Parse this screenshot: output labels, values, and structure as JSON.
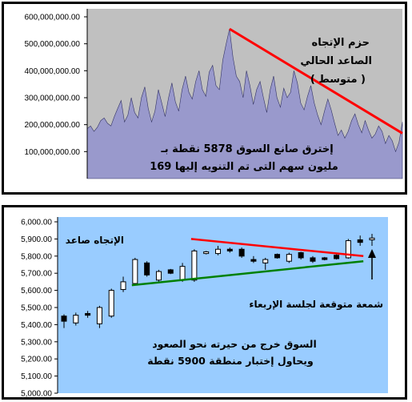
{
  "chart_data": [
    {
      "type": "area",
      "title": "",
      "xlabel": "",
      "ylabel": "",
      "ylim": [
        0,
        600000000
      ],
      "yticks": [
        "600,000,000.00",
        "500,000,000.00",
        "400,000,000.00",
        "300,000,000.00",
        "200,000,000.00",
        "100,000,000.00"
      ],
      "background_color": "#c0c0c0",
      "area_color": "#9999cc",
      "trendline_color": "#ff0000",
      "grid": false,
      "values": [
        185000000,
        195000000,
        175000000,
        190000000,
        215000000,
        225000000,
        205000000,
        195000000,
        230000000,
        260000000,
        290000000,
        210000000,
        235000000,
        300000000,
        245000000,
        225000000,
        300000000,
        340000000,
        260000000,
        210000000,
        250000000,
        330000000,
        280000000,
        230000000,
        300000000,
        355000000,
        285000000,
        250000000,
        330000000,
        380000000,
        320000000,
        295000000,
        360000000,
        400000000,
        330000000,
        305000000,
        395000000,
        420000000,
        345000000,
        330000000,
        440000000,
        500000000,
        555000000,
        450000000,
        380000000,
        360000000,
        300000000,
        400000000,
        345000000,
        275000000,
        330000000,
        360000000,
        300000000,
        245000000,
        330000000,
        380000000,
        300000000,
        265000000,
        335000000,
        300000000,
        320000000,
        400000000,
        355000000,
        280000000,
        255000000,
        305000000,
        345000000,
        280000000,
        235000000,
        200000000,
        250000000,
        295000000,
        255000000,
        205000000,
        160000000,
        180000000,
        150000000,
        175000000,
        215000000,
        240000000,
        200000000,
        170000000,
        215000000,
        180000000,
        150000000,
        165000000,
        195000000,
        175000000,
        130000000,
        160000000,
        140000000,
        100000000,
        135000000,
        210000000
      ],
      "trendline": {
        "from_index": 42,
        "to_index": 93,
        "from_value": 555000000,
        "to_value": 168000000
      },
      "annotations": {
        "top_right": [
          "حزم الإتجاه",
          "الصاعد الحالي",
          "( متوسط )"
        ],
        "bottom": [
          "إخترق صانع السوق 5878 نقطة بـ",
          "169 مليون سهم التى تم التنويه إليها"
        ]
      }
    },
    {
      "type": "candlestick",
      "title": "",
      "xlabel": "",
      "ylabel": "",
      "ylim": [
        5000,
        6000
      ],
      "yticks": [
        "6,000.00",
        "5,900.00",
        "5,800.00",
        "5,700.00",
        "5,600.00",
        "5,500.00",
        "5,400.00",
        "5,300.00",
        "5,200.00",
        "5,100.00",
        "5,000.00"
      ],
      "background_color": "#99ccff",
      "grid": false,
      "candles": [
        {
          "open": 5420,
          "close": 5450,
          "high": 5460,
          "low": 5380,
          "bull": false
        },
        {
          "open": 5410,
          "close": 5455,
          "high": 5470,
          "low": 5395,
          "bull": true
        },
        {
          "open": 5455,
          "close": 5465,
          "high": 5480,
          "low": 5440,
          "bull": false
        },
        {
          "open": 5405,
          "close": 5500,
          "high": 5510,
          "low": 5380,
          "bull": true
        },
        {
          "open": 5450,
          "close": 5600,
          "high": 5610,
          "low": 5440,
          "bull": true
        },
        {
          "open": 5605,
          "close": 5650,
          "high": 5680,
          "low": 5590,
          "bull": true
        },
        {
          "open": 5640,
          "close": 5780,
          "high": 5790,
          "low": 5630,
          "bull": true
        },
        {
          "open": 5690,
          "close": 5760,
          "high": 5770,
          "low": 5680,
          "bull": false
        },
        {
          "open": 5660,
          "close": 5710,
          "high": 5720,
          "low": 5650,
          "bull": true
        },
        {
          "open": 5700,
          "close": 5720,
          "high": 5725,
          "low": 5695,
          "bull": false
        },
        {
          "open": 5660,
          "close": 5740,
          "high": 5760,
          "low": 5650,
          "bull": true
        },
        {
          "open": 5660,
          "close": 5830,
          "high": 5840,
          "low": 5650,
          "bull": true
        },
        {
          "open": 5815,
          "close": 5825,
          "high": 5830,
          "low": 5810,
          "bull": true
        },
        {
          "open": 5815,
          "close": 5840,
          "high": 5860,
          "low": 5805,
          "bull": true
        },
        {
          "open": 5830,
          "close": 5840,
          "high": 5850,
          "low": 5820,
          "bull": false
        },
        {
          "open": 5800,
          "close": 5840,
          "high": 5850,
          "low": 5790,
          "bull": false
        },
        {
          "open": 5770,
          "close": 5780,
          "high": 5800,
          "low": 5760,
          "bull": false
        },
        {
          "open": 5760,
          "close": 5780,
          "high": 5790,
          "low": 5720,
          "bull": true
        },
        {
          "open": 5790,
          "close": 5810,
          "high": 5815,
          "low": 5785,
          "bull": false
        },
        {
          "open": 5770,
          "close": 5810,
          "high": 5820,
          "low": 5760,
          "bull": true
        },
        {
          "open": 5790,
          "close": 5820,
          "high": 5825,
          "low": 5780,
          "bull": false
        },
        {
          "open": 5770,
          "close": 5790,
          "high": 5800,
          "low": 5760,
          "bull": false
        },
        {
          "open": 5780,
          "close": 5790,
          "high": 5795,
          "low": 5775,
          "bull": false
        },
        {
          "open": 5785,
          "close": 5805,
          "high": 5810,
          "low": 5780,
          "bull": false
        },
        {
          "open": 5790,
          "close": 5890,
          "high": 5900,
          "low": 5785,
          "bull": true
        },
        {
          "open": 5880,
          "close": 5895,
          "high": 5920,
          "low": 5860,
          "bull": false
        },
        {
          "open": 5895,
          "close": 5905,
          "high": 5930,
          "low": 5860,
          "bull": true
        }
      ],
      "resistance_line": {
        "from_index": 11,
        "to_index": 25,
        "from_value": 5900,
        "to_value": 5800,
        "color": "#ff0000"
      },
      "support_line": {
        "from_index": 6,
        "to_index": 25,
        "from_value": 5630,
        "to_value": 5770,
        "color": "#008000"
      },
      "annotations": {
        "top_left": "الإتجاه صاعد",
        "right": "شمعة متوقعة لجلسة الإربعاء",
        "bottom": [
          "السوق خرج من حيرته نحو الصعود",
          "ويحاول إختبار منطقة 5900 نقطة"
        ]
      }
    }
  ]
}
